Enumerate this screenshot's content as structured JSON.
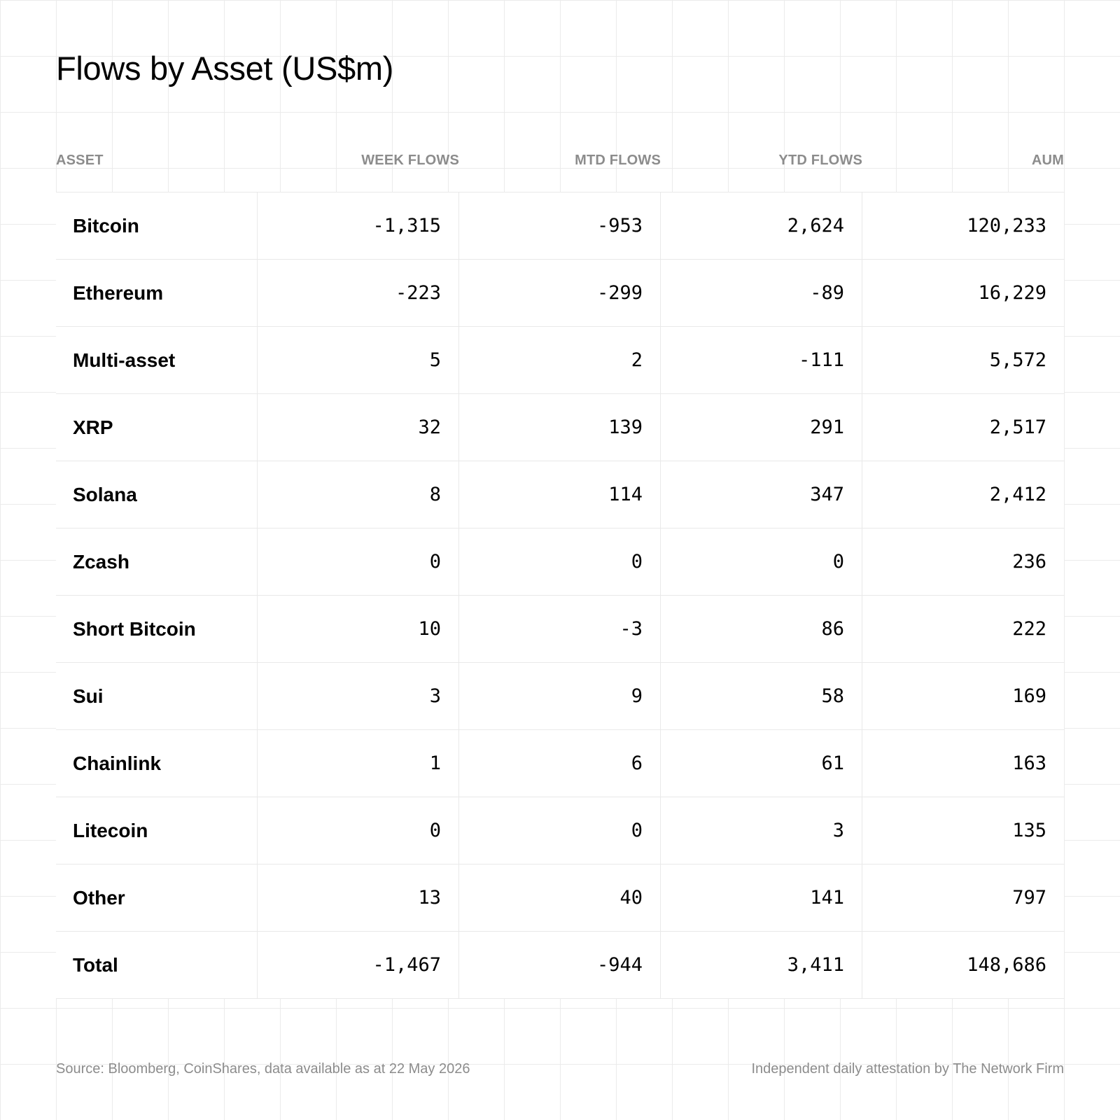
{
  "title": "Flows by Asset (US$m)",
  "chart_data": {
    "type": "table",
    "title": "Flows by Asset (US$m)",
    "columns": [
      "ASSET",
      "WEEK FLOWS",
      "MTD FLOWS",
      "YTD FLOWS",
      "AUM"
    ],
    "rows": [
      [
        "Bitcoin",
        "-1,315",
        "-953",
        "2,624",
        "120,233"
      ],
      [
        "Ethereum",
        "-223",
        "-299",
        "-89",
        "16,229"
      ],
      [
        "Multi-asset",
        "5",
        "2",
        "-111",
        "5,572"
      ],
      [
        "XRP",
        "32",
        "139",
        "291",
        "2,517"
      ],
      [
        "Solana",
        "8",
        "114",
        "347",
        "2,412"
      ],
      [
        "Zcash",
        "0",
        "0",
        "0",
        "236"
      ],
      [
        "Short Bitcoin",
        "10",
        "-3",
        "86",
        "222"
      ],
      [
        "Sui",
        "3",
        "9",
        "58",
        "169"
      ],
      [
        "Chainlink",
        "1",
        "6",
        "61",
        "163"
      ],
      [
        "Litecoin",
        "0",
        "0",
        "3",
        "135"
      ],
      [
        "Other",
        "13",
        "40",
        "141",
        "797"
      ],
      [
        "Total",
        "-1,467",
        "-944",
        "3,411",
        "148,686"
      ]
    ]
  },
  "footer": {
    "source": "Source: Bloomberg, CoinShares, data available as at 22 May 2026",
    "attestation": "Independent daily attestation by The Network Firm"
  }
}
